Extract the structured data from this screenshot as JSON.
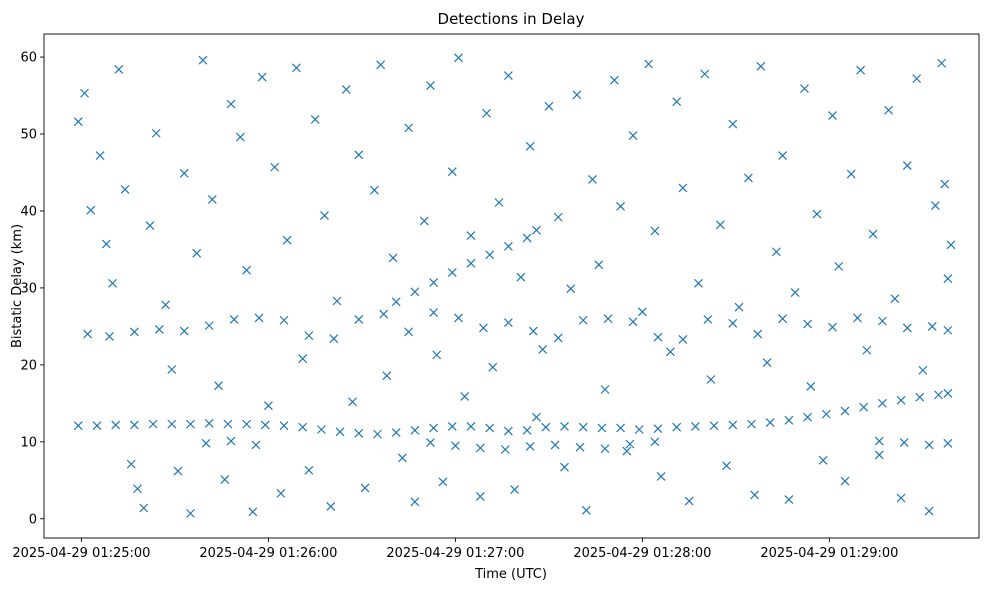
{
  "chart_data": {
    "type": "scatter",
    "title": "Detections in Delay",
    "xlabel": "Time (UTC)",
    "ylabel": "Bistatic Delay (km)",
    "marker": "x",
    "color": "#1f77b4",
    "xlim": [
      "2025-04-29 01:24:48",
      "2025-04-29 01:29:48"
    ],
    "ylim": [
      -2.5,
      63
    ],
    "x_ticks": [
      "2025-04-29 01:25:00",
      "2025-04-29 01:26:00",
      "2025-04-29 01:27:00",
      "2025-04-29 01:28:00",
      "2025-04-29 01:29:00"
    ],
    "y_ticks": [
      0,
      10,
      20,
      30,
      40,
      50,
      60
    ],
    "grid": false,
    "legend": "none",
    "series": [
      {
        "description": "dense track near 12 km rising to 16 km",
        "points": [
          [
            "2025-04-29 01:24:59",
            12.1
          ],
          [
            "2025-04-29 01:25:05",
            12.1
          ],
          [
            "2025-04-29 01:25:11",
            12.2
          ],
          [
            "2025-04-29 01:25:17",
            12.2
          ],
          [
            "2025-04-29 01:25:23",
            12.3
          ],
          [
            "2025-04-29 01:25:29",
            12.3
          ],
          [
            "2025-04-29 01:25:35",
            12.3
          ],
          [
            "2025-04-29 01:25:41",
            12.4
          ],
          [
            "2025-04-29 01:25:47",
            12.3
          ],
          [
            "2025-04-29 01:25:53",
            12.3
          ],
          [
            "2025-04-29 01:25:59",
            12.2
          ],
          [
            "2025-04-29 01:26:05",
            12.1
          ],
          [
            "2025-04-29 01:26:11",
            11.9
          ],
          [
            "2025-04-29 01:26:17",
            11.6
          ],
          [
            "2025-04-29 01:26:23",
            11.3
          ],
          [
            "2025-04-29 01:26:29",
            11.1
          ],
          [
            "2025-04-29 01:26:35",
            11.0
          ],
          [
            "2025-04-29 01:26:41",
            11.2
          ],
          [
            "2025-04-29 01:26:47",
            11.5
          ],
          [
            "2025-04-29 01:26:53",
            11.8
          ],
          [
            "2025-04-29 01:26:59",
            12.0
          ],
          [
            "2025-04-29 01:27:05",
            12.0
          ],
          [
            "2025-04-29 01:27:11",
            11.8
          ],
          [
            "2025-04-29 01:27:17",
            11.4
          ],
          [
            "2025-04-29 01:27:23",
            11.5
          ],
          [
            "2025-04-29 01:27:29",
            11.9
          ],
          [
            "2025-04-29 01:27:35",
            12.0
          ],
          [
            "2025-04-29 01:27:41",
            11.9
          ],
          [
            "2025-04-29 01:27:47",
            11.8
          ],
          [
            "2025-04-29 01:27:53",
            11.8
          ],
          [
            "2025-04-29 01:27:59",
            11.6
          ],
          [
            "2025-04-29 01:28:05",
            11.7
          ],
          [
            "2025-04-29 01:28:11",
            11.9
          ],
          [
            "2025-04-29 01:28:17",
            12.0
          ],
          [
            "2025-04-29 01:28:23",
            12.1
          ],
          [
            "2025-04-29 01:28:29",
            12.2
          ],
          [
            "2025-04-29 01:28:35",
            12.3
          ],
          [
            "2025-04-29 01:28:41",
            12.5
          ],
          [
            "2025-04-29 01:28:47",
            12.8
          ],
          [
            "2025-04-29 01:28:53",
            13.2
          ],
          [
            "2025-04-29 01:28:59",
            13.6
          ],
          [
            "2025-04-29 01:29:05",
            14.0
          ],
          [
            "2025-04-29 01:29:11",
            14.5
          ],
          [
            "2025-04-29 01:29:17",
            15.0
          ],
          [
            "2025-04-29 01:29:23",
            15.4
          ],
          [
            "2025-04-29 01:29:29",
            15.8
          ],
          [
            "2025-04-29 01:29:35",
            16.1
          ],
          [
            "2025-04-29 01:29:38",
            16.3
          ]
        ]
      },
      {
        "description": "band near 25 km",
        "points": [
          [
            "2025-04-29 01:25:02",
            24.0
          ],
          [
            "2025-04-29 01:25:09",
            23.7
          ],
          [
            "2025-04-29 01:25:17",
            24.3
          ],
          [
            "2025-04-29 01:25:25",
            24.6
          ],
          [
            "2025-04-29 01:25:33",
            24.4
          ],
          [
            "2025-04-29 01:25:41",
            25.1
          ],
          [
            "2025-04-29 01:25:49",
            25.9
          ],
          [
            "2025-04-29 01:25:57",
            26.1
          ],
          [
            "2025-04-29 01:26:05",
            25.8
          ],
          [
            "2025-04-29 01:26:13",
            23.8
          ],
          [
            "2025-04-29 01:26:21",
            23.4
          ],
          [
            "2025-04-29 01:26:29",
            25.9
          ],
          [
            "2025-04-29 01:26:37",
            26.6
          ],
          [
            "2025-04-29 01:26:45",
            24.3
          ],
          [
            "2025-04-29 01:26:53",
            26.8
          ],
          [
            "2025-04-29 01:27:01",
            26.1
          ],
          [
            "2025-04-29 01:27:09",
            24.8
          ],
          [
            "2025-04-29 01:27:17",
            25.5
          ],
          [
            "2025-04-29 01:27:25",
            24.4
          ],
          [
            "2025-04-29 01:27:33",
            23.5
          ],
          [
            "2025-04-29 01:27:41",
            25.8
          ],
          [
            "2025-04-29 01:27:49",
            26.0
          ],
          [
            "2025-04-29 01:27:57",
            25.6
          ],
          [
            "2025-04-29 01:28:05",
            23.6
          ],
          [
            "2025-04-29 01:28:13",
            23.3
          ],
          [
            "2025-04-29 01:28:21",
            25.9
          ],
          [
            "2025-04-29 01:28:29",
            25.4
          ],
          [
            "2025-04-29 01:28:37",
            24.0
          ],
          [
            "2025-04-29 01:28:45",
            26.0
          ],
          [
            "2025-04-29 01:28:53",
            25.3
          ],
          [
            "2025-04-29 01:29:01",
            24.9
          ],
          [
            "2025-04-29 01:29:09",
            26.1
          ],
          [
            "2025-04-29 01:29:17",
            25.7
          ],
          [
            "2025-04-29 01:29:25",
            24.8
          ],
          [
            "2025-04-29 01:29:33",
            25.0
          ],
          [
            "2025-04-29 01:29:38",
            24.5
          ]
        ]
      },
      {
        "description": "rising track from 27 km to 38 km",
        "points": [
          [
            "2025-04-29 01:26:41",
            28.2
          ],
          [
            "2025-04-29 01:26:47",
            29.5
          ],
          [
            "2025-04-29 01:26:53",
            30.7
          ],
          [
            "2025-04-29 01:26:59",
            32.0
          ],
          [
            "2025-04-29 01:27:05",
            33.2
          ],
          [
            "2025-04-29 01:27:11",
            34.3
          ],
          [
            "2025-04-29 01:27:17",
            35.4
          ],
          [
            "2025-04-29 01:27:23",
            36.5
          ],
          [
            "2025-04-29 01:27:26",
            37.5
          ]
        ]
      },
      {
        "description": "band near 10 km",
        "points": [
          [
            "2025-04-29 01:25:40",
            9.8
          ],
          [
            "2025-04-29 01:25:48",
            10.1
          ],
          [
            "2025-04-29 01:25:56",
            9.6
          ],
          [
            "2025-04-29 01:26:52",
            9.9
          ],
          [
            "2025-04-29 01:27:00",
            9.5
          ],
          [
            "2025-04-29 01:27:08",
            9.2
          ],
          [
            "2025-04-29 01:27:16",
            9.0
          ],
          [
            "2025-04-29 01:27:24",
            9.4
          ],
          [
            "2025-04-29 01:27:32",
            9.6
          ],
          [
            "2025-04-29 01:27:40",
            9.3
          ],
          [
            "2025-04-29 01:27:48",
            9.1
          ],
          [
            "2025-04-29 01:27:56",
            9.7
          ],
          [
            "2025-04-29 01:28:04",
            10.0
          ],
          [
            "2025-04-29 01:29:16",
            10.1
          ],
          [
            "2025-04-29 01:29:24",
            9.9
          ],
          [
            "2025-04-29 01:29:32",
            9.6
          ],
          [
            "2025-04-29 01:29:38",
            9.8
          ]
        ]
      },
      {
        "description": "scattered clutter",
        "points": [
          [
            "2025-04-29 01:24:59",
            51.6
          ],
          [
            "2025-04-29 01:25:01",
            55.3
          ],
          [
            "2025-04-29 01:25:03",
            40.1
          ],
          [
            "2025-04-29 01:25:06",
            47.2
          ],
          [
            "2025-04-29 01:25:08",
            35.7
          ],
          [
            "2025-04-29 01:25:10",
            30.6
          ],
          [
            "2025-04-29 01:25:12",
            58.4
          ],
          [
            "2025-04-29 01:25:14",
            42.8
          ],
          [
            "2025-04-29 01:25:16",
            7.1
          ],
          [
            "2025-04-29 01:25:18",
            3.9
          ],
          [
            "2025-04-29 01:25:20",
            1.4
          ],
          [
            "2025-04-29 01:25:22",
            38.1
          ],
          [
            "2025-04-29 01:25:24",
            50.1
          ],
          [
            "2025-04-29 01:25:27",
            27.8
          ],
          [
            "2025-04-29 01:25:29",
            19.4
          ],
          [
            "2025-04-29 01:25:31",
            6.2
          ],
          [
            "2025-04-29 01:25:33",
            44.9
          ],
          [
            "2025-04-29 01:25:35",
            0.7
          ],
          [
            "2025-04-29 01:25:37",
            34.5
          ],
          [
            "2025-04-29 01:25:39",
            59.6
          ],
          [
            "2025-04-29 01:25:42",
            41.5
          ],
          [
            "2025-04-29 01:25:44",
            17.3
          ],
          [
            "2025-04-29 01:25:46",
            5.1
          ],
          [
            "2025-04-29 01:25:48",
            53.9
          ],
          [
            "2025-04-29 01:25:51",
            49.6
          ],
          [
            "2025-04-29 01:25:53",
            32.3
          ],
          [
            "2025-04-29 01:25:55",
            0.9
          ],
          [
            "2025-04-29 01:25:58",
            57.4
          ],
          [
            "2025-04-29 01:26:00",
            14.7
          ],
          [
            "2025-04-29 01:26:02",
            45.7
          ],
          [
            "2025-04-29 01:26:04",
            3.3
          ],
          [
            "2025-04-29 01:26:06",
            36.2
          ],
          [
            "2025-04-29 01:26:09",
            58.6
          ],
          [
            "2025-04-29 01:26:11",
            20.8
          ],
          [
            "2025-04-29 01:26:13",
            6.3
          ],
          [
            "2025-04-29 01:26:15",
            51.9
          ],
          [
            "2025-04-29 01:26:18",
            39.4
          ],
          [
            "2025-04-29 01:26:20",
            1.6
          ],
          [
            "2025-04-29 01:26:22",
            28.3
          ],
          [
            "2025-04-29 01:26:25",
            55.8
          ],
          [
            "2025-04-29 01:26:27",
            15.2
          ],
          [
            "2025-04-29 01:26:29",
            47.3
          ],
          [
            "2025-04-29 01:26:31",
            4.0
          ],
          [
            "2025-04-29 01:26:34",
            42.7
          ],
          [
            "2025-04-29 01:26:36",
            59.0
          ],
          [
            "2025-04-29 01:26:38",
            18.6
          ],
          [
            "2025-04-29 01:26:40",
            33.9
          ],
          [
            "2025-04-29 01:26:43",
            7.9
          ],
          [
            "2025-04-29 01:26:45",
            50.8
          ],
          [
            "2025-04-29 01:26:47",
            2.2
          ],
          [
            "2025-04-29 01:26:50",
            38.7
          ],
          [
            "2025-04-29 01:26:52",
            56.3
          ],
          [
            "2025-04-29 01:26:54",
            21.3
          ],
          [
            "2025-04-29 01:26:56",
            4.8
          ],
          [
            "2025-04-29 01:26:59",
            45.1
          ],
          [
            "2025-04-29 01:27:01",
            59.9
          ],
          [
            "2025-04-29 01:27:03",
            15.9
          ],
          [
            "2025-04-29 01:27:05",
            36.8
          ],
          [
            "2025-04-29 01:27:08",
            2.9
          ],
          [
            "2025-04-29 01:27:10",
            52.7
          ],
          [
            "2025-04-29 01:27:12",
            19.7
          ],
          [
            "2025-04-29 01:27:14",
            41.1
          ],
          [
            "2025-04-29 01:27:17",
            57.6
          ],
          [
            "2025-04-29 01:27:19",
            3.8
          ],
          [
            "2025-04-29 01:27:21",
            31.4
          ],
          [
            "2025-04-29 01:27:24",
            48.4
          ],
          [
            "2025-04-29 01:27:26",
            13.2
          ],
          [
            "2025-04-29 01:27:28",
            22.0
          ],
          [
            "2025-04-29 01:27:30",
            53.6
          ],
          [
            "2025-04-29 01:27:33",
            39.2
          ],
          [
            "2025-04-29 01:27:35",
            6.7
          ],
          [
            "2025-04-29 01:27:37",
            29.9
          ],
          [
            "2025-04-29 01:27:39",
            55.1
          ],
          [
            "2025-04-29 01:27:42",
            1.1
          ],
          [
            "2025-04-29 01:27:44",
            44.1
          ],
          [
            "2025-04-29 01:27:46",
            33.0
          ],
          [
            "2025-04-29 01:27:48",
            16.8
          ],
          [
            "2025-04-29 01:27:51",
            57.0
          ],
          [
            "2025-04-29 01:27:53",
            40.6
          ],
          [
            "2025-04-29 01:27:55",
            8.8
          ],
          [
            "2025-04-29 01:27:57",
            49.8
          ],
          [
            "2025-04-29 01:28:00",
            26.9
          ],
          [
            "2025-04-29 01:28:02",
            59.1
          ],
          [
            "2025-04-29 01:28:04",
            37.4
          ],
          [
            "2025-04-29 01:28:06",
            5.5
          ],
          [
            "2025-04-29 01:28:09",
            21.7
          ],
          [
            "2025-04-29 01:28:11",
            54.2
          ],
          [
            "2025-04-29 01:28:13",
            43.0
          ],
          [
            "2025-04-29 01:28:15",
            2.3
          ],
          [
            "2025-04-29 01:28:18",
            30.6
          ],
          [
            "2025-04-29 01:28:20",
            57.8
          ],
          [
            "2025-04-29 01:28:22",
            18.1
          ],
          [
            "2025-04-29 01:28:25",
            38.2
          ],
          [
            "2025-04-29 01:28:27",
            6.9
          ],
          [
            "2025-04-29 01:28:29",
            51.3
          ],
          [
            "2025-04-29 01:28:31",
            27.5
          ],
          [
            "2025-04-29 01:28:34",
            44.3
          ],
          [
            "2025-04-29 01:28:36",
            3.1
          ],
          [
            "2025-04-29 01:28:38",
            58.8
          ],
          [
            "2025-04-29 01:28:40",
            20.3
          ],
          [
            "2025-04-29 01:28:43",
            34.7
          ],
          [
            "2025-04-29 01:28:45",
            47.2
          ],
          [
            "2025-04-29 01:28:47",
            2.5
          ],
          [
            "2025-04-29 01:28:49",
            29.4
          ],
          [
            "2025-04-29 01:28:52",
            55.9
          ],
          [
            "2025-04-29 01:28:54",
            17.2
          ],
          [
            "2025-04-29 01:28:56",
            39.6
          ],
          [
            "2025-04-29 01:28:58",
            7.6
          ],
          [
            "2025-04-29 01:29:01",
            52.4
          ],
          [
            "2025-04-29 01:29:03",
            32.8
          ],
          [
            "2025-04-29 01:29:05",
            4.9
          ],
          [
            "2025-04-29 01:29:07",
            44.8
          ],
          [
            "2025-04-29 01:29:10",
            58.3
          ],
          [
            "2025-04-29 01:29:12",
            21.9
          ],
          [
            "2025-04-29 01:29:14",
            37.0
          ],
          [
            "2025-04-29 01:29:16",
            8.3
          ],
          [
            "2025-04-29 01:29:19",
            53.1
          ],
          [
            "2025-04-29 01:29:21",
            28.6
          ],
          [
            "2025-04-29 01:29:23",
            2.7
          ],
          [
            "2025-04-29 01:29:25",
            45.9
          ],
          [
            "2025-04-29 01:29:28",
            57.2
          ],
          [
            "2025-04-29 01:29:30",
            19.3
          ],
          [
            "2025-04-29 01:29:32",
            1.0
          ],
          [
            "2025-04-29 01:29:34",
            40.7
          ],
          [
            "2025-04-29 01:29:36",
            59.2
          ],
          [
            "2025-04-29 01:29:37",
            43.5
          ],
          [
            "2025-04-29 01:29:38",
            31.2
          ],
          [
            "2025-04-29 01:29:39",
            35.6
          ]
        ]
      }
    ]
  }
}
